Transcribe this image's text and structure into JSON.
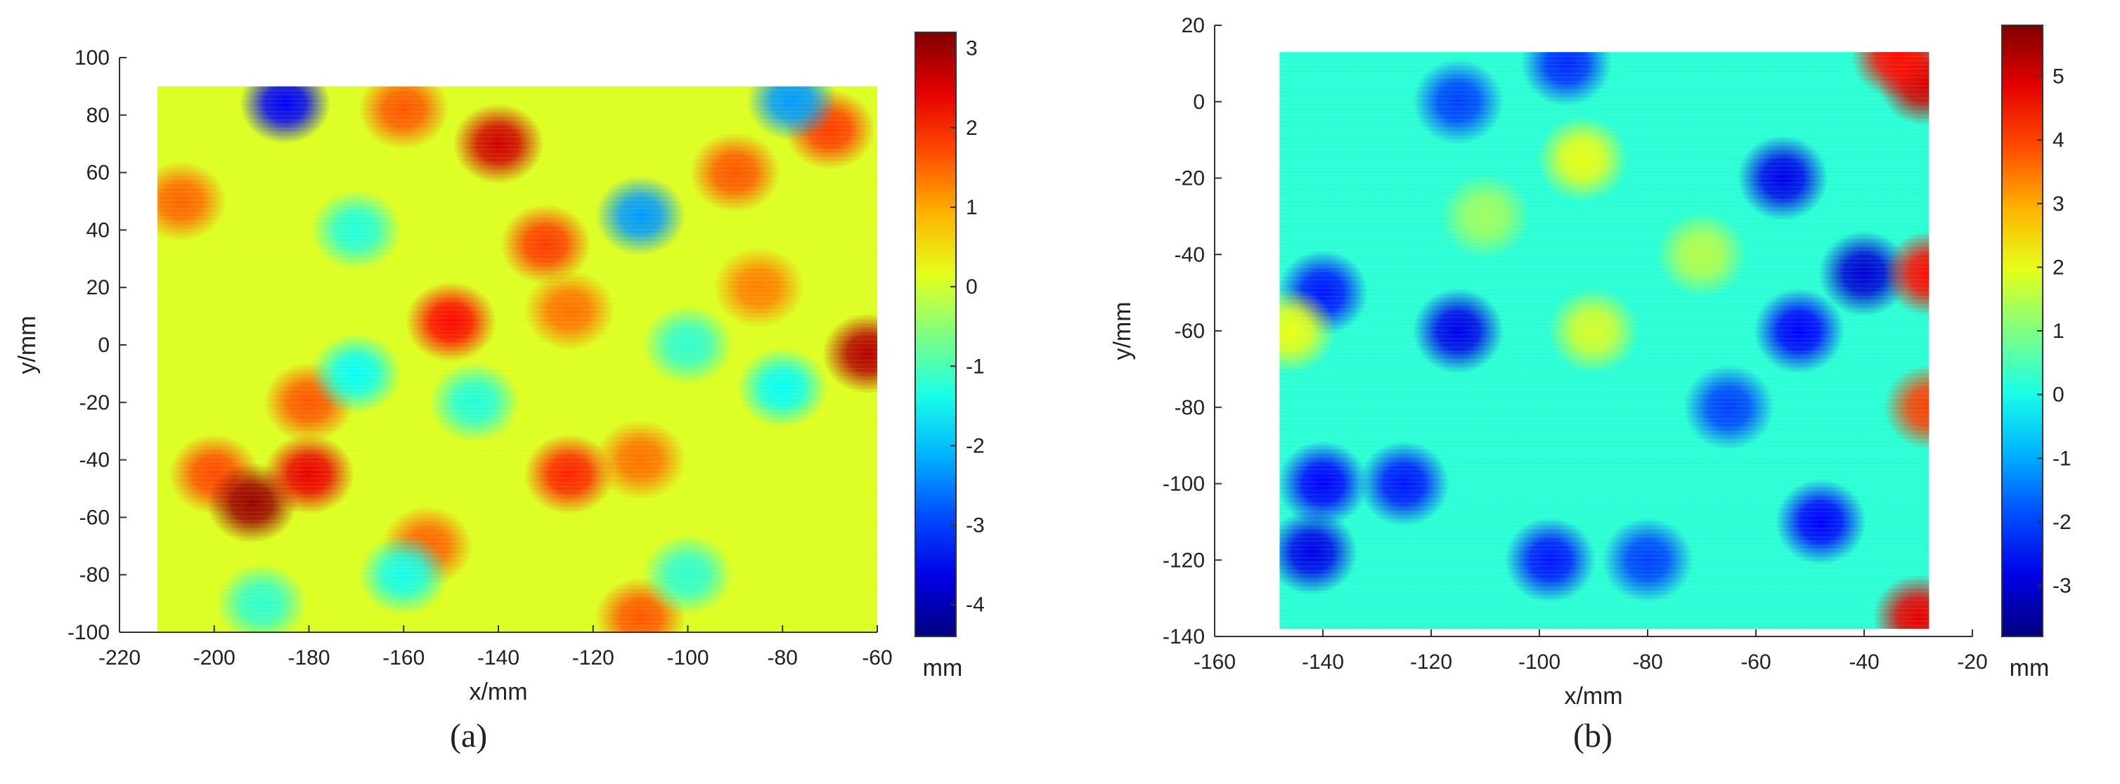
{
  "chart_data": [
    {
      "type": "heatmap",
      "caption": "(a)",
      "xlabel": "x/mm",
      "ylabel": "y/mm",
      "xlim": [
        -220,
        -60
      ],
      "ylim": [
        -100,
        100
      ],
      "xticks": [
        -220,
        -200,
        -180,
        -160,
        -140,
        -120,
        -100,
        -80,
        -60
      ],
      "yticks": [
        -100,
        -80,
        -60,
        -40,
        -20,
        0,
        20,
        40,
        60,
        80,
        100
      ],
      "data_extent": {
        "x": [
          -212,
          -60
        ],
        "y": [
          -100,
          90
        ]
      },
      "colorbar": {
        "range": [
          -4.4,
          3.2
        ],
        "ticks": [
          3,
          2,
          1,
          0,
          -1,
          -2,
          -3,
          -4
        ],
        "unit": "mm",
        "colormap": "jet"
      },
      "base_value": 0.1,
      "features": [
        {
          "x": -140,
          "y": 70,
          "value": 2.6
        },
        {
          "x": -160,
          "y": 82,
          "value": 1.6
        },
        {
          "x": -185,
          "y": 84,
          "value": -3.5
        },
        {
          "x": -207,
          "y": 50,
          "value": 1.5
        },
        {
          "x": -130,
          "y": 35,
          "value": 1.8
        },
        {
          "x": -150,
          "y": 8,
          "value": 2.2
        },
        {
          "x": -125,
          "y": 12,
          "value": 1.4
        },
        {
          "x": -180,
          "y": -20,
          "value": 1.6
        },
        {
          "x": -200,
          "y": -45,
          "value": 1.7
        },
        {
          "x": -192,
          "y": -55,
          "value": 3.0
        },
        {
          "x": -180,
          "y": -45,
          "value": 2.4
        },
        {
          "x": -125,
          "y": -45,
          "value": 2.0
        },
        {
          "x": -110,
          "y": -40,
          "value": 1.4
        },
        {
          "x": -85,
          "y": 20,
          "value": 1.3
        },
        {
          "x": -70,
          "y": 75,
          "value": 1.8
        },
        {
          "x": -62,
          "y": -3,
          "value": 2.8
        },
        {
          "x": -90,
          "y": 60,
          "value": 1.6
        },
        {
          "x": -155,
          "y": -70,
          "value": 1.5
        },
        {
          "x": -110,
          "y": -95,
          "value": 1.6
        },
        {
          "x": -170,
          "y": 40,
          "value": -1.3
        },
        {
          "x": -170,
          "y": -10,
          "value": -1.5
        },
        {
          "x": -145,
          "y": -20,
          "value": -1.3
        },
        {
          "x": -100,
          "y": 0,
          "value": -1.2
        },
        {
          "x": -80,
          "y": -15,
          "value": -1.5
        },
        {
          "x": -160,
          "y": -80,
          "value": -1.4
        },
        {
          "x": -190,
          "y": -90,
          "value": -1.2
        },
        {
          "x": -110,
          "y": 45,
          "value": -2.3
        },
        {
          "x": -78,
          "y": 85,
          "value": -2.3
        },
        {
          "x": -100,
          "y": -80,
          "value": -1.2
        }
      ]
    },
    {
      "type": "heatmap",
      "caption": "(b)",
      "xlabel": "x/mm",
      "ylabel": "y/mm",
      "xlim": [
        -160,
        -20
      ],
      "ylim": [
        -140,
        20
      ],
      "xticks": [
        -160,
        -140,
        -120,
        -100,
        -80,
        -60,
        -40,
        -20
      ],
      "yticks": [
        -140,
        -120,
        -100,
        -80,
        -60,
        -40,
        -20,
        0,
        20
      ],
      "data_extent": {
        "x": [
          -148,
          -28
        ],
        "y": [
          -138,
          13
        ]
      },
      "colorbar": {
        "range": [
          -3.8,
          5.8
        ],
        "ticks": [
          5,
          4,
          3,
          2,
          1,
          0,
          -1,
          -2,
          -3
        ],
        "unit": "mm",
        "colormap": "jet"
      },
      "base_value": 0.2,
      "features": [
        {
          "x": -115,
          "y": -60,
          "value": -2.8
        },
        {
          "x": -140,
          "y": -50,
          "value": -2.4
        },
        {
          "x": -140,
          "y": -100,
          "value": -2.6
        },
        {
          "x": -142,
          "y": -118,
          "value": -2.8
        },
        {
          "x": -98,
          "y": -120,
          "value": -2.4
        },
        {
          "x": -80,
          "y": -120,
          "value": -2.0
        },
        {
          "x": -55,
          "y": -20,
          "value": -2.8
        },
        {
          "x": -52,
          "y": -60,
          "value": -2.6
        },
        {
          "x": -48,
          "y": -110,
          "value": -2.6
        },
        {
          "x": -40,
          "y": -45,
          "value": -3.0
        },
        {
          "x": -95,
          "y": 10,
          "value": -2.2
        },
        {
          "x": -115,
          "y": 0,
          "value": -2.0
        },
        {
          "x": -125,
          "y": -100,
          "value": -2.4
        },
        {
          "x": -65,
          "y": -80,
          "value": -2.0
        },
        {
          "x": -90,
          "y": -60,
          "value": 1.8
        },
        {
          "x": -92,
          "y": -15,
          "value": 2.0
        },
        {
          "x": -70,
          "y": -40,
          "value": 1.5
        },
        {
          "x": -110,
          "y": -30,
          "value": 1.3
        },
        {
          "x": -146,
          "y": -60,
          "value": 2.0
        },
        {
          "x": -28,
          "y": -45,
          "value": 4.5
        },
        {
          "x": -29,
          "y": 5,
          "value": 5.0
        },
        {
          "x": -28,
          "y": -80,
          "value": 4.0
        },
        {
          "x": -34,
          "y": 12,
          "value": 4.5
        },
        {
          "x": -30,
          "y": -135,
          "value": 4.8
        }
      ]
    }
  ]
}
